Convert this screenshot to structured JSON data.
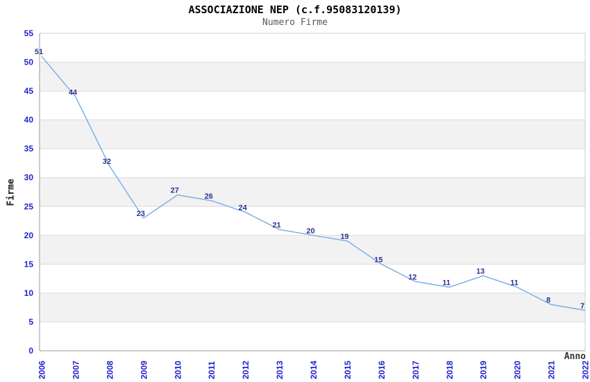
{
  "chart_data": {
    "type": "line",
    "title": "ASSOCIAZIONE NEP (c.f.95083120139)",
    "subtitle": "Numero Firme",
    "xlabel": "Anno",
    "ylabel": "Firme",
    "categories": [
      "2006",
      "2007",
      "2008",
      "2009",
      "2010",
      "2011",
      "2012",
      "2013",
      "2014",
      "2015",
      "2016",
      "2017",
      "2018",
      "2019",
      "2020",
      "2021",
      "2022"
    ],
    "values": [
      51,
      44,
      32,
      23,
      27,
      26,
      24,
      21,
      20,
      19,
      15,
      12,
      11,
      13,
      11,
      8,
      7
    ],
    "ylim": [
      0,
      55
    ],
    "ytick_step": 5,
    "yticks": [
      0,
      5,
      10,
      15,
      20,
      25,
      30,
      35,
      40,
      45,
      50,
      55
    ],
    "grid": true,
    "legend": "none",
    "markers": "none",
    "band_ranges": [
      [
        5,
        10
      ],
      [
        15,
        20
      ],
      [
        25,
        30
      ],
      [
        35,
        40
      ],
      [
        45,
        50
      ]
    ],
    "colors": {
      "line": "#7ab1ea",
      "value_label": "#31318f",
      "tick_label": "#2222cc",
      "band": "#f2f2f2",
      "grid": "#dcdcdc",
      "axis": "#999999",
      "frame": "#cccccc",
      "title": "#000000",
      "subtitle": "#585858",
      "background": "#ffffff"
    }
  }
}
